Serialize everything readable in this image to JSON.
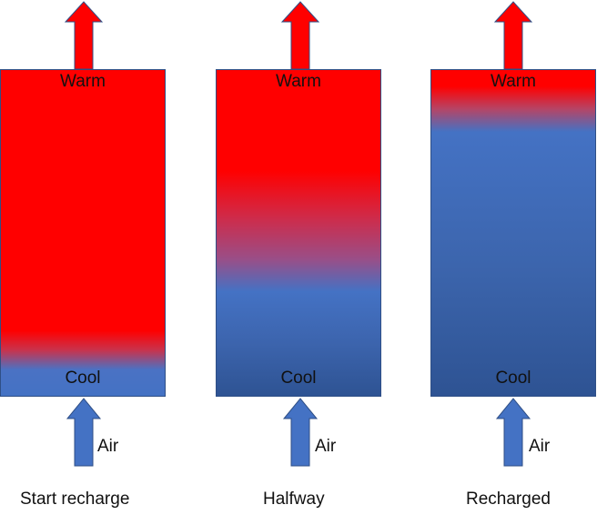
{
  "labels": {
    "warm": "Warm",
    "cool": "Cool",
    "air": "Air"
  },
  "stages": [
    {
      "caption": "Start recharge",
      "warm_fraction": 0.8
    },
    {
      "caption": "Halfway",
      "warm_fraction": 0.5
    },
    {
      "caption": "Recharged",
      "warm_fraction": 0.1
    }
  ],
  "colors": {
    "warm": "#ff0000",
    "cool": "#4472c4",
    "cool_dark": "#2e5393",
    "outline": "#2f4f86"
  },
  "icons": {
    "outflow": "red-up-arrow-icon",
    "inflow": "blue-up-arrow-icon"
  }
}
